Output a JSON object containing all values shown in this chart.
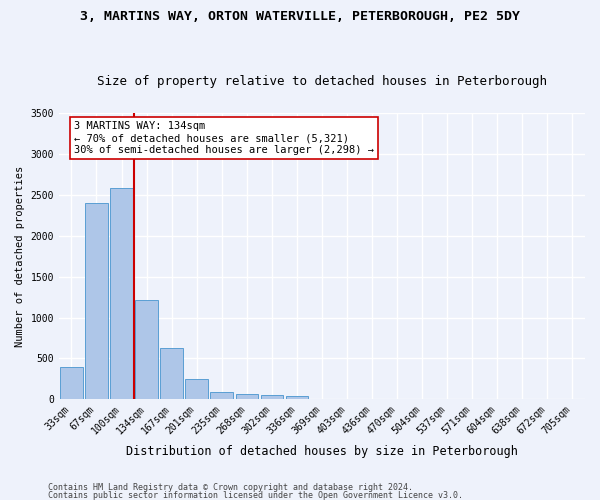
{
  "title1": "3, MARTINS WAY, ORTON WATERVILLE, PETERBOROUGH, PE2 5DY",
  "title2": "Size of property relative to detached houses in Peterborough",
  "xlabel": "Distribution of detached houses by size in Peterborough",
  "ylabel": "Number of detached properties",
  "categories": [
    "33sqm",
    "67sqm",
    "100sqm",
    "134sqm",
    "167sqm",
    "201sqm",
    "235sqm",
    "268sqm",
    "302sqm",
    "336sqm",
    "369sqm",
    "403sqm",
    "436sqm",
    "470sqm",
    "504sqm",
    "537sqm",
    "571sqm",
    "604sqm",
    "638sqm",
    "672sqm",
    "705sqm"
  ],
  "values": [
    390,
    2400,
    2590,
    1220,
    630,
    250,
    95,
    65,
    55,
    45,
    0,
    0,
    0,
    0,
    0,
    0,
    0,
    0,
    0,
    0,
    0
  ],
  "bar_color": "#aec6e8",
  "bar_edge_color": "#5a9fd4",
  "vline_x_index": 3,
  "vline_color": "#cc0000",
  "annotation_text": "3 MARTINS WAY: 134sqm\n← 70% of detached houses are smaller (5,321)\n30% of semi-detached houses are larger (2,298) →",
  "annotation_box_color": "white",
  "annotation_box_edge_color": "#cc0000",
  "ylim": [
    0,
    3500
  ],
  "yticks": [
    0,
    500,
    1000,
    1500,
    2000,
    2500,
    3000,
    3500
  ],
  "footer_line1": "Contains HM Land Registry data © Crown copyright and database right 2024.",
  "footer_line2": "Contains public sector information licensed under the Open Government Licence v3.0.",
  "bg_color": "#eef2fb",
  "grid_color": "#ffffff",
  "title1_fontsize": 9.5,
  "title2_fontsize": 9,
  "annot_fontsize": 7.5,
  "tick_fontsize": 7,
  "ylabel_fontsize": 7.5,
  "xlabel_fontsize": 8.5
}
